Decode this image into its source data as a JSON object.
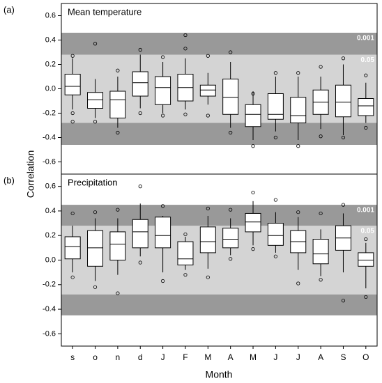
{
  "chart_data": {
    "type": "box",
    "ylabel": "Correlation",
    "xlabel": "Month",
    "categories": [
      "s",
      "o",
      "n",
      "d",
      "J",
      "F",
      "M",
      "A",
      "M",
      "J",
      "J",
      "A",
      "S",
      "O"
    ],
    "ylim": [
      -0.7,
      0.7
    ],
    "yticks": [
      -0.6,
      -0.4,
      -0.2,
      {
        "value": 0,
        "label": "0.0"
      },
      0.2,
      0.4,
      0.6
    ],
    "box_color": "#ffffff",
    "panels": [
      {
        "label": "(a)",
        "title": "Mean temperature",
        "bands": [
          {
            "label": "0.001",
            "value": 0.46,
            "color": "#999999"
          },
          {
            "label": "0.05",
            "value": 0.28,
            "color": "#d4d4d4"
          }
        ],
        "boxes": [
          {
            "whisker_low": -0.17,
            "q1": -0.05,
            "median": 0.02,
            "q3": 0.12,
            "whisker_high": 0.25,
            "outliers": [
              0.27,
              -0.2,
              -0.27
            ]
          },
          {
            "whisker_low": -0.24,
            "q1": -0.16,
            "median": -0.09,
            "q3": -0.03,
            "whisker_high": 0.08,
            "outliers": [
              0.37,
              -0.27
            ]
          },
          {
            "whisker_low": -0.32,
            "q1": -0.24,
            "median": -0.09,
            "q3": -0.02,
            "whisker_high": 0.1,
            "outliers": [
              0.15,
              -0.36
            ]
          },
          {
            "whisker_low": -0.16,
            "q1": -0.06,
            "median": 0.05,
            "q3": 0.14,
            "whisker_high": 0.28,
            "outliers": [
              0.32,
              -0.2
            ]
          },
          {
            "whisker_low": -0.2,
            "q1": -0.13,
            "median": 0.01,
            "q3": 0.1,
            "whisker_high": 0.22,
            "outliers": [
              0.26,
              -0.22
            ]
          },
          {
            "whisker_low": -0.17,
            "q1": -0.1,
            "median": 0.01,
            "q3": 0.12,
            "whisker_high": 0.25,
            "outliers": [
              0.44,
              0.33,
              -0.21
            ]
          },
          {
            "whisker_low": -0.13,
            "q1": -0.06,
            "median": -0.01,
            "q3": 0.03,
            "whisker_high": 0.13,
            "outliers": [
              0.27,
              -0.22
            ]
          },
          {
            "whisker_low": -0.32,
            "q1": -0.21,
            "median": -0.07,
            "q3": 0.08,
            "whisker_high": 0.22,
            "outliers": [
              0.3,
              -0.36
            ]
          },
          {
            "whisker_low": -0.42,
            "q1": -0.31,
            "median": -0.21,
            "q3": -0.13,
            "whisker_high": -0.02,
            "outliers": [
              -0.04,
              -0.47
            ]
          },
          {
            "whisker_low": -0.35,
            "q1": -0.25,
            "median": -0.21,
            "q3": -0.04,
            "whisker_high": 0.1,
            "outliers": [
              0.13,
              -0.4
            ]
          },
          {
            "whisker_low": -0.42,
            "q1": -0.28,
            "median": -0.22,
            "q3": -0.07,
            "whisker_high": 0.1,
            "outliers": [
              0.13,
              -0.47
            ]
          },
          {
            "whisker_low": -0.33,
            "q1": -0.21,
            "median": -0.11,
            "q3": -0.01,
            "whisker_high": 0.1,
            "outliers": [
              0.18,
              -0.39
            ]
          },
          {
            "whisker_low": -0.38,
            "q1": -0.23,
            "median": -0.11,
            "q3": 0.03,
            "whisker_high": 0.2,
            "outliers": [
              0.25,
              -0.4
            ]
          },
          {
            "whisker_low": -0.28,
            "q1": -0.22,
            "median": -0.14,
            "q3": -0.08,
            "whisker_high": 0.05,
            "outliers": [
              0.11,
              -0.32
            ]
          }
        ]
      },
      {
        "label": "(b)",
        "title": "Precipitation",
        "bands": [
          {
            "label": "0.001",
            "value": 0.45,
            "color": "#999999"
          },
          {
            "label": "0.05",
            "value": 0.28,
            "color": "#d4d4d4"
          }
        ],
        "boxes": [
          {
            "whisker_low": -0.1,
            "q1": 0.01,
            "median": 0.11,
            "q3": 0.19,
            "whisker_high": 0.28,
            "outliers": [
              0.38,
              -0.14
            ]
          },
          {
            "whisker_low": -0.17,
            "q1": -0.05,
            "median": 0.1,
            "q3": 0.24,
            "whisker_high": 0.34,
            "outliers": [
              0.39,
              -0.22
            ]
          },
          {
            "whisker_low": -0.12,
            "q1": 0.0,
            "median": 0.13,
            "q3": 0.23,
            "whisker_high": 0.34,
            "outliers": [
              0.41,
              -0.27
            ]
          },
          {
            "whisker_low": 0.03,
            "q1": 0.1,
            "median": 0.23,
            "q3": 0.33,
            "whisker_high": 0.46,
            "outliers": [
              0.6,
              -0.02
            ]
          },
          {
            "whisker_low": -0.1,
            "q1": 0.1,
            "median": 0.2,
            "q3": 0.35,
            "whisker_high": 0.36,
            "outliers": [
              0.44,
              -0.17
            ]
          },
          {
            "whisker_low": -0.08,
            "q1": -0.04,
            "median": 0.01,
            "q3": 0.15,
            "whisker_high": 0.19,
            "outliers": [
              0.21,
              -0.12
            ]
          },
          {
            "whisker_low": -0.07,
            "q1": 0.06,
            "median": 0.15,
            "q3": 0.27,
            "whisker_high": 0.36,
            "outliers": [
              0.42,
              -0.14
            ]
          },
          {
            "whisker_low": 0.04,
            "q1": 0.1,
            "median": 0.17,
            "q3": 0.26,
            "whisker_high": 0.34,
            "outliers": [
              0.41,
              0.01
            ]
          },
          {
            "whisker_low": 0.12,
            "q1": 0.23,
            "median": 0.31,
            "q3": 0.38,
            "whisker_high": 0.48,
            "outliers": [
              0.55,
              0.09
            ]
          },
          {
            "whisker_low": 0.06,
            "q1": 0.12,
            "median": 0.2,
            "q3": 0.3,
            "whisker_high": 0.39,
            "outliers": [
              0.49,
              0.03
            ]
          },
          {
            "whisker_low": -0.08,
            "q1": 0.06,
            "median": 0.15,
            "q3": 0.24,
            "whisker_high": 0.35,
            "outliers": [
              0.39,
              -0.19
            ]
          },
          {
            "whisker_low": -0.13,
            "q1": -0.03,
            "median": 0.05,
            "q3": 0.17,
            "whisker_high": 0.25,
            "outliers": [
              0.38,
              -0.16
            ]
          },
          {
            "whisker_low": -0.1,
            "q1": 0.08,
            "median": 0.18,
            "q3": 0.28,
            "whisker_high": 0.38,
            "outliers": [
              0.45,
              -0.33
            ]
          },
          {
            "whisker_low": -0.23,
            "q1": -0.05,
            "median": 0.0,
            "q3": 0.06,
            "whisker_high": 0.14,
            "outliers": [
              0.17,
              -0.3
            ]
          }
        ]
      }
    ]
  }
}
